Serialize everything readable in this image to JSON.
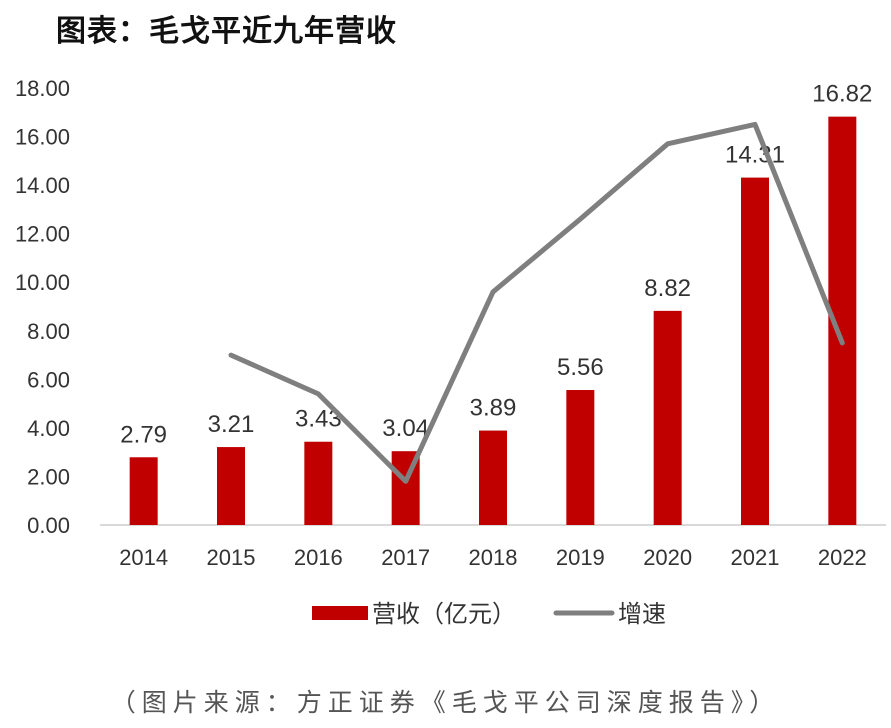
{
  "title": "图表：毛戈平近九年营收",
  "source_note": "（图片来源：方正证券《毛戈平公司深度报告》）",
  "colors": {
    "bar": "#c00000",
    "line": "#7f7f7f",
    "axis": "#d9d9d9",
    "text": "#333333"
  },
  "chart_data": {
    "type": "bar",
    "categories": [
      "2014",
      "2015",
      "2016",
      "2017",
      "2018",
      "2019",
      "2020",
      "2021",
      "2022"
    ],
    "series": [
      {
        "name": "营收（亿元）",
        "type": "bar",
        "values": [
          2.79,
          3.21,
          3.43,
          3.04,
          3.89,
          5.56,
          8.82,
          14.31,
          16.82
        ],
        "labels": [
          "2.79",
          "3.21",
          "3.43",
          "3.04",
          "3.89",
          "5.56",
          "8.82",
          "14.31",
          "16.82"
        ]
      },
      {
        "name": "增速",
        "type": "line",
        "values": [
          null,
          7.0,
          5.4,
          1.8,
          9.6,
          12.6,
          15.7,
          16.5,
          7.5
        ]
      }
    ],
    "yticks": [
      "0.00",
      "2.00",
      "4.00",
      "6.00",
      "8.00",
      "10.00",
      "12.00",
      "14.00",
      "16.00",
      "18.00"
    ],
    "ylim": [
      0,
      18
    ],
    "legend_position": "bottom",
    "grid": false
  }
}
